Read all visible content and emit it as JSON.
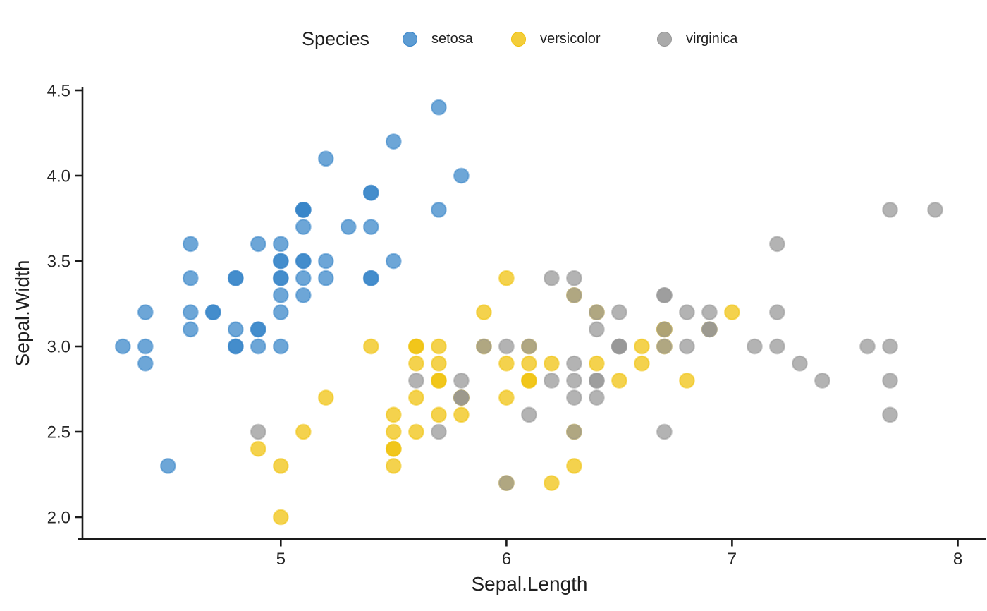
{
  "chart_data": {
    "type": "scatter",
    "title": "",
    "xlabel": "Sepal.Length",
    "ylabel": "Sepal.Width",
    "x_range": [
      4.121,
      8.086
    ],
    "y_range": [
      1.876,
      4.525
    ],
    "x_tick_values": [
      5,
      6,
      7,
      8
    ],
    "x_tick_labels": [
      "5",
      "6",
      "7",
      "8"
    ],
    "y_tick_values": [
      2.0,
      2.5,
      3.0,
      3.5,
      4.0,
      4.5
    ],
    "y_tick_labels": [
      "2.0",
      "2.5",
      "3.0",
      "3.5",
      "4.0",
      "4.5"
    ],
    "grid": false,
    "axis_color": "#1a1a1a",
    "text_color": "#262626",
    "legend": {
      "title": "Species",
      "position": "top-center"
    },
    "series": [
      {
        "name": "setosa",
        "color": "#3583C8",
        "points": [
          [
            5.1,
            3.5
          ],
          [
            4.9,
            3.0
          ],
          [
            4.7,
            3.2
          ],
          [
            4.6,
            3.1
          ],
          [
            5.0,
            3.6
          ],
          [
            5.4,
            3.9
          ],
          [
            4.6,
            3.4
          ],
          [
            5.0,
            3.4
          ],
          [
            4.4,
            2.9
          ],
          [
            4.9,
            3.1
          ],
          [
            5.4,
            3.7
          ],
          [
            4.8,
            3.4
          ],
          [
            4.8,
            3.0
          ],
          [
            4.3,
            3.0
          ],
          [
            5.8,
            4.0
          ],
          [
            5.7,
            4.4
          ],
          [
            5.4,
            3.9
          ],
          [
            5.1,
            3.5
          ],
          [
            5.7,
            3.8
          ],
          [
            5.1,
            3.8
          ],
          [
            5.4,
            3.4
          ],
          [
            5.1,
            3.7
          ],
          [
            4.6,
            3.6
          ],
          [
            5.1,
            3.3
          ],
          [
            4.8,
            3.4
          ],
          [
            5.0,
            3.0
          ],
          [
            5.0,
            3.4
          ],
          [
            5.2,
            3.5
          ],
          [
            5.2,
            3.4
          ],
          [
            4.7,
            3.2
          ],
          [
            4.8,
            3.1
          ],
          [
            5.4,
            3.4
          ],
          [
            5.2,
            4.1
          ],
          [
            5.5,
            4.2
          ],
          [
            4.9,
            3.1
          ],
          [
            5.0,
            3.2
          ],
          [
            5.5,
            3.5
          ],
          [
            4.9,
            3.6
          ],
          [
            4.4,
            3.0
          ],
          [
            5.1,
            3.4
          ],
          [
            5.0,
            3.5
          ],
          [
            4.5,
            2.3
          ],
          [
            4.4,
            3.2
          ],
          [
            5.0,
            3.5
          ],
          [
            5.1,
            3.8
          ],
          [
            4.8,
            3.0
          ],
          [
            5.1,
            3.8
          ],
          [
            4.6,
            3.2
          ],
          [
            5.3,
            3.7
          ],
          [
            5.0,
            3.3
          ]
        ]
      },
      {
        "name": "versicolor",
        "color": "#F0C108",
        "points": [
          [
            7.0,
            3.2
          ],
          [
            6.4,
            3.2
          ],
          [
            6.9,
            3.1
          ],
          [
            5.5,
            2.3
          ],
          [
            6.5,
            2.8
          ],
          [
            5.7,
            2.8
          ],
          [
            6.3,
            3.3
          ],
          [
            4.9,
            2.4
          ],
          [
            6.6,
            2.9
          ],
          [
            5.2,
            2.7
          ],
          [
            5.0,
            2.0
          ],
          [
            5.9,
            3.0
          ],
          [
            6.0,
            2.2
          ],
          [
            6.1,
            2.9
          ],
          [
            5.6,
            2.9
          ],
          [
            6.7,
            3.1
          ],
          [
            5.6,
            3.0
          ],
          [
            5.8,
            2.7
          ],
          [
            6.2,
            2.2
          ],
          [
            5.6,
            2.5
          ],
          [
            5.9,
            3.2
          ],
          [
            6.1,
            2.8
          ],
          [
            6.3,
            2.5
          ],
          [
            6.1,
            2.8
          ],
          [
            6.4,
            2.9
          ],
          [
            6.6,
            3.0
          ],
          [
            6.8,
            2.8
          ],
          [
            6.7,
            3.0
          ],
          [
            6.0,
            2.9
          ],
          [
            5.7,
            2.6
          ],
          [
            5.5,
            2.4
          ],
          [
            5.5,
            2.4
          ],
          [
            5.8,
            2.7
          ],
          [
            6.0,
            2.7
          ],
          [
            5.4,
            3.0
          ],
          [
            6.0,
            3.4
          ],
          [
            6.7,
            3.1
          ],
          [
            6.3,
            2.3
          ],
          [
            5.6,
            3.0
          ],
          [
            5.5,
            2.5
          ],
          [
            5.5,
            2.6
          ],
          [
            6.1,
            3.0
          ],
          [
            5.8,
            2.6
          ],
          [
            5.0,
            2.3
          ],
          [
            5.6,
            2.7
          ],
          [
            5.7,
            3.0
          ],
          [
            5.7,
            2.9
          ],
          [
            6.2,
            2.9
          ],
          [
            5.1,
            2.5
          ],
          [
            5.7,
            2.8
          ]
        ]
      },
      {
        "name": "virginica",
        "color": "#959595",
        "points": [
          [
            6.3,
            3.3
          ],
          [
            5.8,
            2.7
          ],
          [
            7.1,
            3.0
          ],
          [
            6.3,
            2.9
          ],
          [
            6.5,
            3.0
          ],
          [
            7.6,
            3.0
          ],
          [
            4.9,
            2.5
          ],
          [
            7.3,
            2.9
          ],
          [
            6.7,
            2.5
          ],
          [
            7.2,
            3.6
          ],
          [
            6.5,
            3.2
          ],
          [
            6.4,
            2.7
          ],
          [
            6.8,
            3.0
          ],
          [
            5.7,
            2.5
          ],
          [
            5.8,
            2.8
          ],
          [
            6.4,
            3.2
          ],
          [
            6.5,
            3.0
          ],
          [
            7.7,
            3.8
          ],
          [
            7.7,
            2.6
          ],
          [
            6.0,
            2.2
          ],
          [
            6.9,
            3.2
          ],
          [
            5.6,
            2.8
          ],
          [
            7.7,
            2.8
          ],
          [
            6.3,
            2.7
          ],
          [
            6.7,
            3.3
          ],
          [
            7.2,
            3.2
          ],
          [
            6.2,
            2.8
          ],
          [
            6.1,
            3.0
          ],
          [
            6.4,
            2.8
          ],
          [
            7.2,
            3.0
          ],
          [
            7.4,
            2.8
          ],
          [
            7.9,
            3.8
          ],
          [
            6.4,
            2.8
          ],
          [
            6.3,
            2.8
          ],
          [
            6.1,
            2.6
          ],
          [
            7.7,
            3.0
          ],
          [
            6.3,
            3.4
          ],
          [
            6.4,
            3.1
          ],
          [
            6.0,
            3.0
          ],
          [
            6.9,
            3.1
          ],
          [
            6.7,
            3.1
          ],
          [
            6.9,
            3.1
          ],
          [
            5.8,
            2.7
          ],
          [
            6.8,
            3.2
          ],
          [
            6.7,
            3.3
          ],
          [
            6.7,
            3.0
          ],
          [
            6.3,
            2.5
          ],
          [
            6.5,
            3.0
          ],
          [
            6.2,
            3.4
          ],
          [
            5.9,
            3.0
          ]
        ]
      }
    ]
  }
}
